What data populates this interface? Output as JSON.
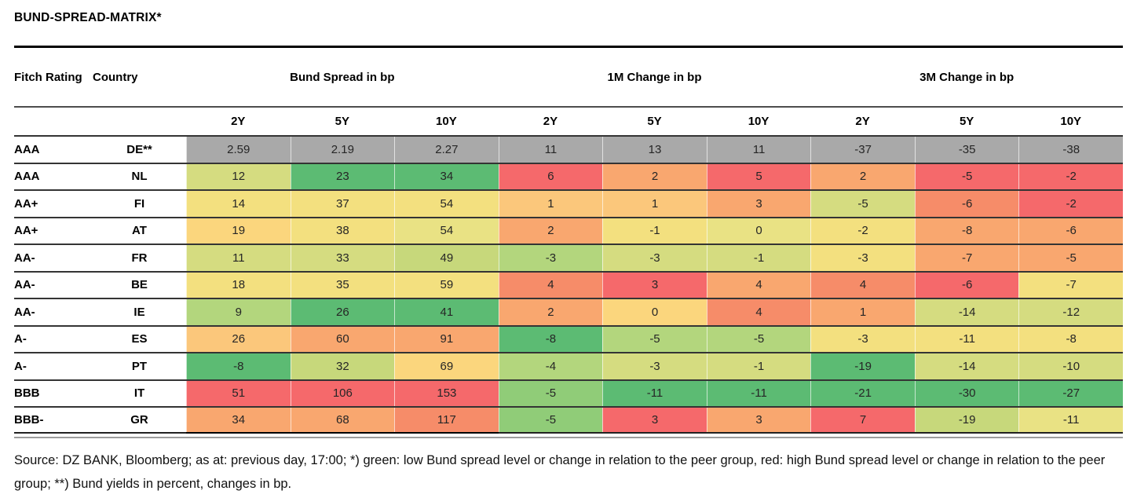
{
  "title": "BUND-SPREAD-MATRIX*",
  "palette": {
    "gray": "#a9a9a9",
    "g": "#5cbb73",
    "g2": "#90cc78",
    "g3": "#b3d67d",
    "yg": "#d5dc80",
    "yg2": "#c7d87b",
    "y": "#f3e07f",
    "y2": "#e9e284",
    "yo": "#fbd67d",
    "lo": "#fbc77b",
    "o": "#f9a76f",
    "o2": "#f68c69",
    "r": "#f5696b"
  },
  "chart_data": {
    "type": "heatmap",
    "title": "BUND-SPREAD-MATRIX*",
    "row_header_labels": [
      "Fitch Rating",
      "Country"
    ],
    "column_groups": [
      "Bund Spread in bp",
      "1M Change in bp",
      "3M Change in bp"
    ],
    "tenors": [
      "2Y",
      "5Y",
      "10Y"
    ],
    "legend_note": "green = low spread/change vs peer group, red = high; DE row shows Bund yields in percent (gray)",
    "rows": [
      {
        "rating": "AAA",
        "country": "DE**",
        "values": [
          "2.59",
          "2.19",
          "2.27",
          "11",
          "13",
          "11",
          "-37",
          "-35",
          "-38"
        ],
        "colors": [
          "gray",
          "gray",
          "gray",
          "gray",
          "gray",
          "gray",
          "gray",
          "gray",
          "gray"
        ]
      },
      {
        "rating": "AAA",
        "country": "NL",
        "values": [
          "12",
          "23",
          "34",
          "6",
          "2",
          "5",
          "2",
          "-5",
          "-2"
        ],
        "colors": [
          "yg",
          "g",
          "g",
          "r",
          "o",
          "r",
          "o",
          "r",
          "r"
        ]
      },
      {
        "rating": "AA+",
        "country": "FI",
        "values": [
          "14",
          "37",
          "54",
          "1",
          "1",
          "3",
          "-5",
          "-6",
          "-2"
        ],
        "colors": [
          "y",
          "y",
          "y",
          "lo",
          "lo",
          "o",
          "yg",
          "o2",
          "r"
        ]
      },
      {
        "rating": "AA+",
        "country": "AT",
        "values": [
          "19",
          "38",
          "54",
          "2",
          "-1",
          "0",
          "-2",
          "-8",
          "-6"
        ],
        "colors": [
          "yo",
          "y",
          "y2",
          "o",
          "y",
          "y2",
          "y",
          "o",
          "o"
        ]
      },
      {
        "rating": "AA-",
        "country": "FR",
        "values": [
          "11",
          "33",
          "49",
          "-3",
          "-3",
          "-1",
          "-3",
          "-7",
          "-5"
        ],
        "colors": [
          "yg",
          "yg",
          "yg2",
          "g3",
          "yg",
          "yg",
          "y",
          "o",
          "o"
        ]
      },
      {
        "rating": "AA-",
        "country": "BE",
        "values": [
          "18",
          "35",
          "59",
          "4",
          "3",
          "4",
          "4",
          "-6",
          "-7"
        ],
        "colors": [
          "y",
          "y",
          "y",
          "o2",
          "r",
          "o",
          "o2",
          "r",
          "y"
        ]
      },
      {
        "rating": "AA-",
        "country": "IE",
        "values": [
          "9",
          "26",
          "41",
          "2",
          "0",
          "4",
          "1",
          "-14",
          "-12"
        ],
        "colors": [
          "g3",
          "g",
          "g",
          "o",
          "yo",
          "o2",
          "o",
          "yg",
          "yg"
        ]
      },
      {
        "rating": "A-",
        "country": "ES",
        "values": [
          "26",
          "60",
          "91",
          "-8",
          "-5",
          "-5",
          "-3",
          "-11",
          "-8"
        ],
        "colors": [
          "lo",
          "o",
          "o",
          "g",
          "g3",
          "g3",
          "y",
          "y",
          "y"
        ]
      },
      {
        "rating": "A-",
        "country": "PT",
        "values": [
          "-8",
          "32",
          "69",
          "-4",
          "-3",
          "-1",
          "-19",
          "-14",
          "-10"
        ],
        "colors": [
          "g",
          "yg2",
          "yo",
          "g3",
          "yg",
          "yg",
          "g",
          "yg",
          "yg"
        ]
      },
      {
        "rating": "BBB",
        "country": "IT",
        "values": [
          "51",
          "106",
          "153",
          "-5",
          "-11",
          "-11",
          "-21",
          "-30",
          "-27"
        ],
        "colors": [
          "r",
          "r",
          "r",
          "g2",
          "g",
          "g",
          "g",
          "g",
          "g"
        ]
      },
      {
        "rating": "BBB-",
        "country": "GR",
        "values": [
          "34",
          "68",
          "117",
          "-5",
          "3",
          "3",
          "7",
          "-19",
          "-11"
        ],
        "colors": [
          "o",
          "o",
          "o2",
          "g2",
          "r",
          "o",
          "r",
          "yg2",
          "y2"
        ]
      }
    ]
  },
  "footer": "Source: DZ BANK, Bloomberg; as at: previous day, 17:00; *) green: low Bund spread level or change in relation to the peer group, red: high Bund spread level or change in relation to the peer group; **) Bund yields in percent, changes in bp."
}
